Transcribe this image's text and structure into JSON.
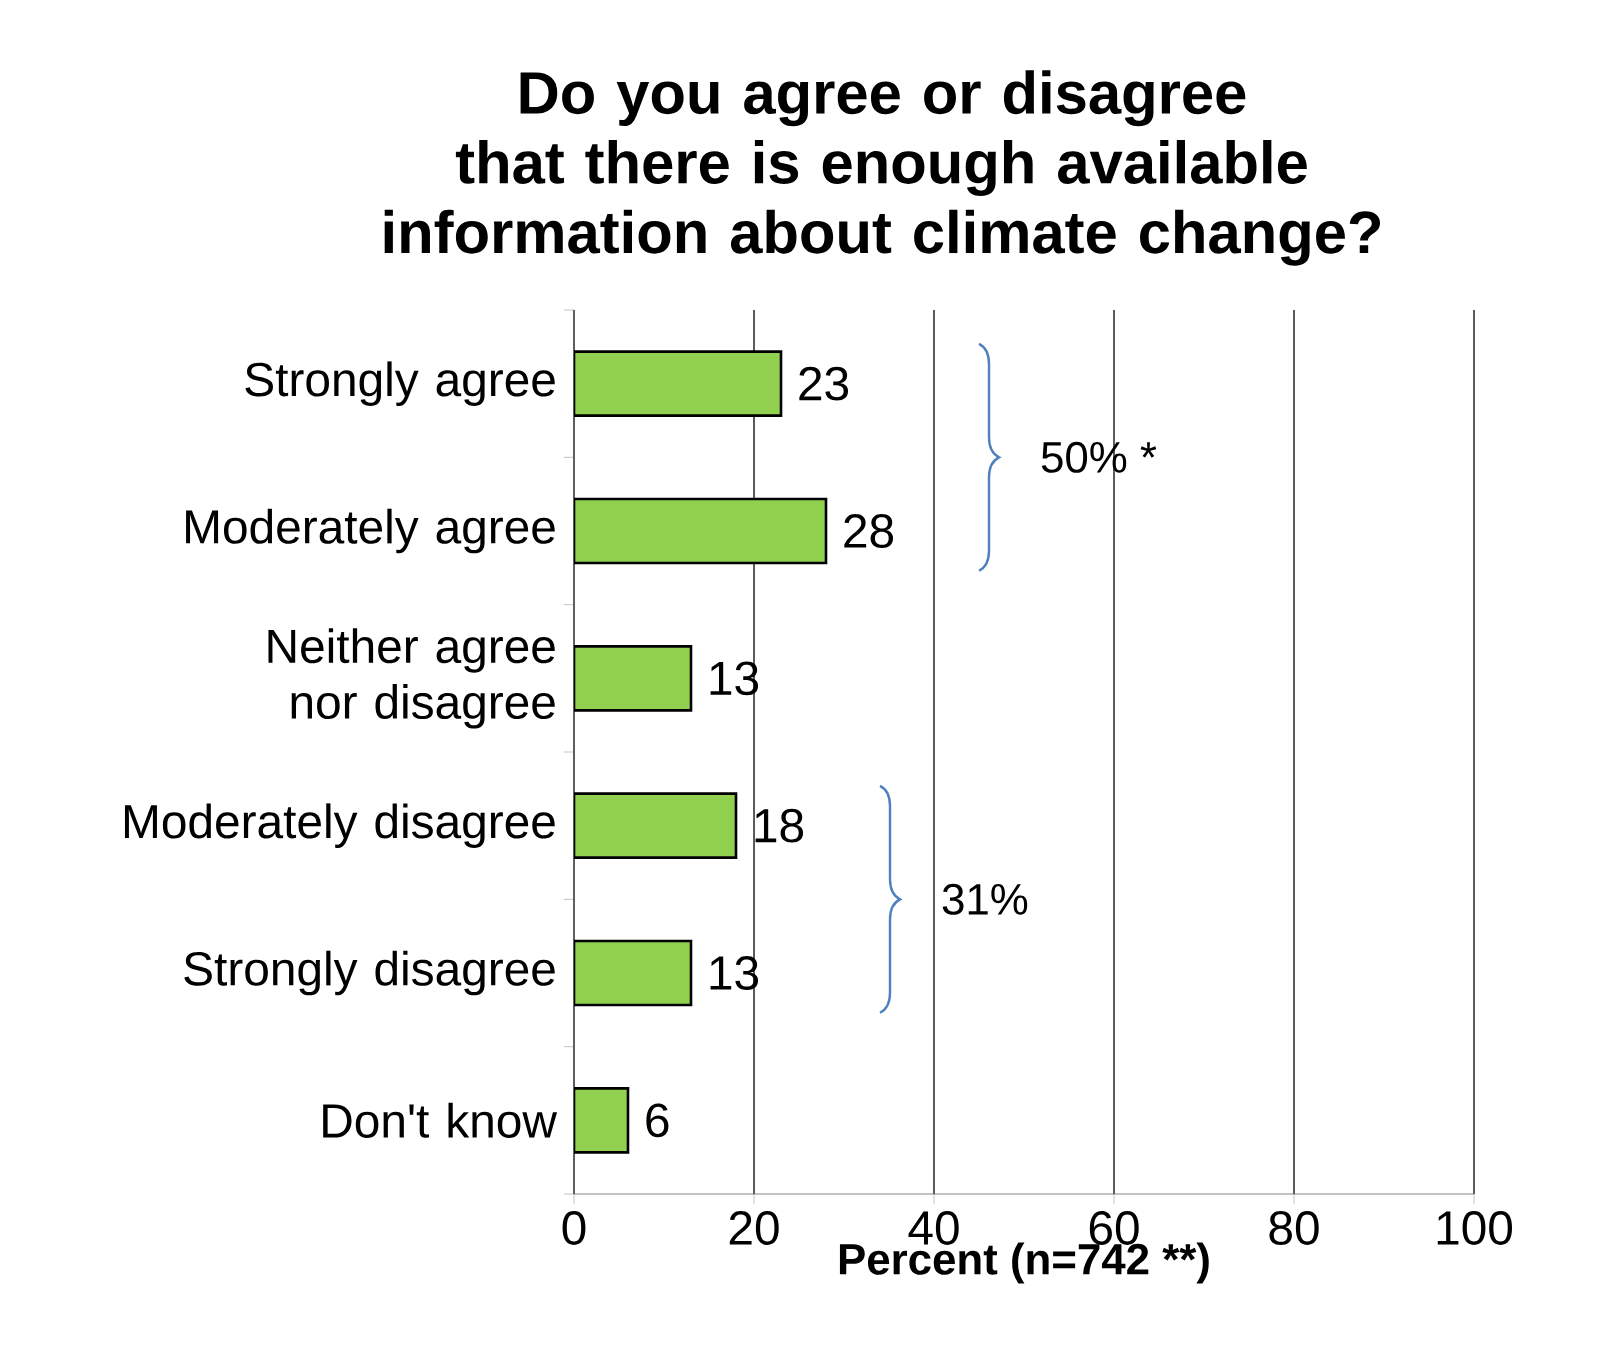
{
  "chart_data": {
    "type": "bar",
    "orientation": "horizontal",
    "title": "Do you agree or disagree that there is enough available information about climate change?",
    "xlabel": "Percent (n=742 **)",
    "categories": [
      "Strongly agree",
      "Moderately agree",
      "Neither agree nor disagree",
      "Moderately disagree",
      "Strongly disagree",
      "Don't know"
    ],
    "values": [
      23,
      28,
      13,
      18,
      13,
      6
    ],
    "color": "#92d050",
    "data_labels": true,
    "xlim": [
      0,
      100
    ],
    "xticks": [
      0,
      20,
      40,
      60,
      80,
      100
    ],
    "grid": "x",
    "annotations": [
      "50% *",
      "31%"
    ]
  }
}
